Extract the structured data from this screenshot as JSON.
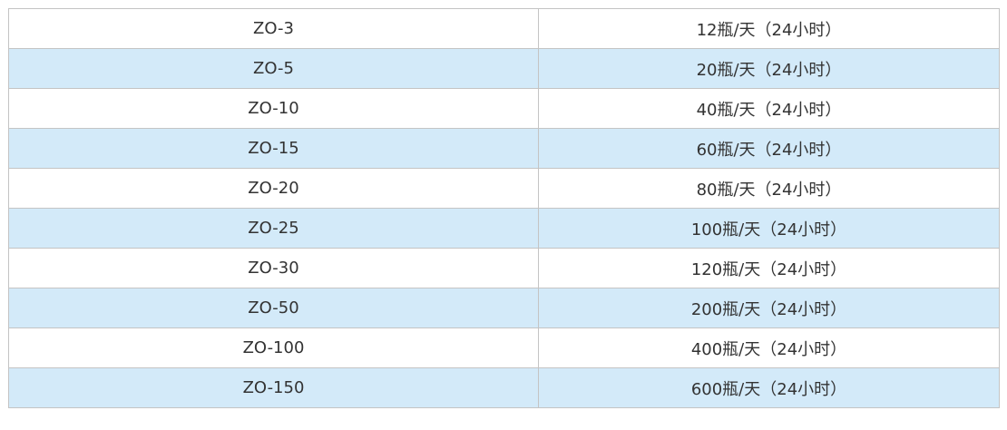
{
  "colors": {
    "alt_row": "#d3eaf9",
    "border": "#c4c4c4"
  },
  "rows": [
    {
      "model": "ZO-3",
      "capacity": "12瓶/天（24小时）"
    },
    {
      "model": "ZO-5",
      "capacity": "20瓶/天（24小时）"
    },
    {
      "model": "ZO-10",
      "capacity": "40瓶/天（24小时）"
    },
    {
      "model": "ZO-15",
      "capacity": "60瓶/天（24小时）"
    },
    {
      "model": "ZO-20",
      "capacity": "80瓶/天（24小时）"
    },
    {
      "model": "ZO-25",
      "capacity": "100瓶/天（24小时）"
    },
    {
      "model": "ZO-30",
      "capacity": "120瓶/天（24小时）"
    },
    {
      "model": "ZO-50",
      "capacity": "200瓶/天（24小时）"
    },
    {
      "model": "ZO-100",
      "capacity": "400瓶/天（24小时）"
    },
    {
      "model": "ZO-150",
      "capacity": "600瓶/天（24小时）"
    }
  ]
}
